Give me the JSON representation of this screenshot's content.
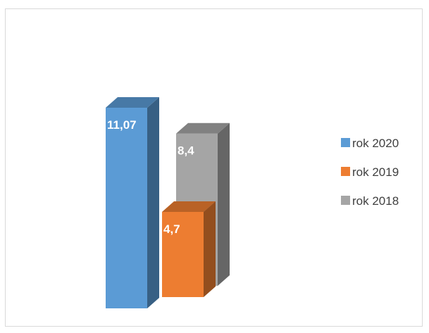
{
  "chart_data": {
    "type": "bar",
    "variant": "3d-column",
    "title": "",
    "xlabel": "",
    "ylabel": "",
    "grid": false,
    "legend_position": "right",
    "series": [
      {
        "name": "rok 2020",
        "values": [
          11.07
        ],
        "label": "11,07",
        "color": "#5b9bd5"
      },
      {
        "name": "rok 2019",
        "values": [
          4.7
        ],
        "label": "4,7",
        "color": "#ed7d31"
      },
      {
        "name": "rok 2018",
        "values": [
          8.4
        ],
        "label": "8,4",
        "color": "#a5a5a5"
      }
    ]
  }
}
